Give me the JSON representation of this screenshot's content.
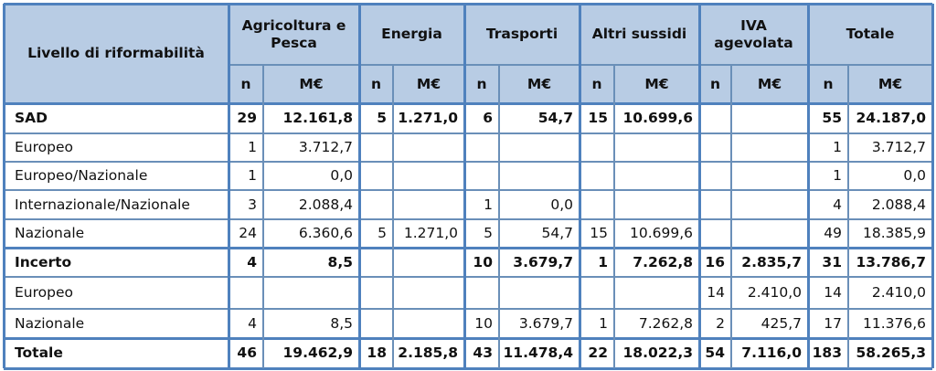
{
  "table": {
    "header_label": "Livello di riformabilità",
    "groups": [
      "Agricoltura e Pesca",
      "Energia",
      "Trasporti",
      "Altri sussidi",
      "IVA agevolata",
      "Totale"
    ],
    "subheaders": [
      "n",
      "M€"
    ],
    "rows": [
      {
        "label": "SAD",
        "bold": true,
        "cells": [
          "29",
          "12.161,8",
          "5",
          "1.271,0",
          "6",
          "54,7",
          "15",
          "10.699,6",
          "",
          "",
          "55",
          "24.187,0"
        ]
      },
      {
        "label": "Europeo",
        "bold": false,
        "cells": [
          "1",
          "3.712,7",
          "",
          "",
          "",
          "",
          "",
          "",
          "",
          "",
          "1",
          "3.712,7"
        ]
      },
      {
        "label": "Europeo/Nazionale",
        "bold": false,
        "cells": [
          "1",
          "0,0",
          "",
          "",
          "",
          "",
          "",
          "",
          "",
          "",
          "1",
          "0,0"
        ]
      },
      {
        "label": "Internazionale/Nazionale",
        "bold": false,
        "cells": [
          "3",
          "2.088,4",
          "",
          "",
          "1",
          "0,0",
          "",
          "",
          "",
          "",
          "4",
          "2.088,4"
        ]
      },
      {
        "label": "Nazionale",
        "bold": false,
        "cells": [
          "24",
          "6.360,6",
          "5",
          "1.271,0",
          "5",
          "54,7",
          "15",
          "10.699,6",
          "",
          "",
          "49",
          "18.385,9"
        ]
      },
      {
        "label": "Incerto",
        "bold": true,
        "cells": [
          "4",
          "8,5",
          "",
          "",
          "10",
          "3.679,7",
          "1",
          "7.262,8",
          "16",
          "2.835,7",
          "31",
          "13.786,7"
        ]
      },
      {
        "label": "Europeo",
        "bold": false,
        "cells": [
          "",
          "",
          "",
          "",
          "",
          "",
          "",
          "",
          "14",
          "2.410,0",
          "14",
          "2.410,0"
        ]
      },
      {
        "label": "Nazionale",
        "bold": false,
        "cells": [
          "4",
          "8,5",
          "",
          "",
          "10",
          "3.679,7",
          "1",
          "7.262,8",
          "2",
          "425,7",
          "17",
          "11.376,6"
        ]
      },
      {
        "label": "Totale",
        "bold": true,
        "cells": [
          "46",
          "19.462,9",
          "18",
          "2.185,8",
          "43",
          "11.478,4",
          "22",
          "18.022,3",
          "54",
          "7.116,0",
          "183",
          "58.265,3"
        ]
      }
    ]
  }
}
